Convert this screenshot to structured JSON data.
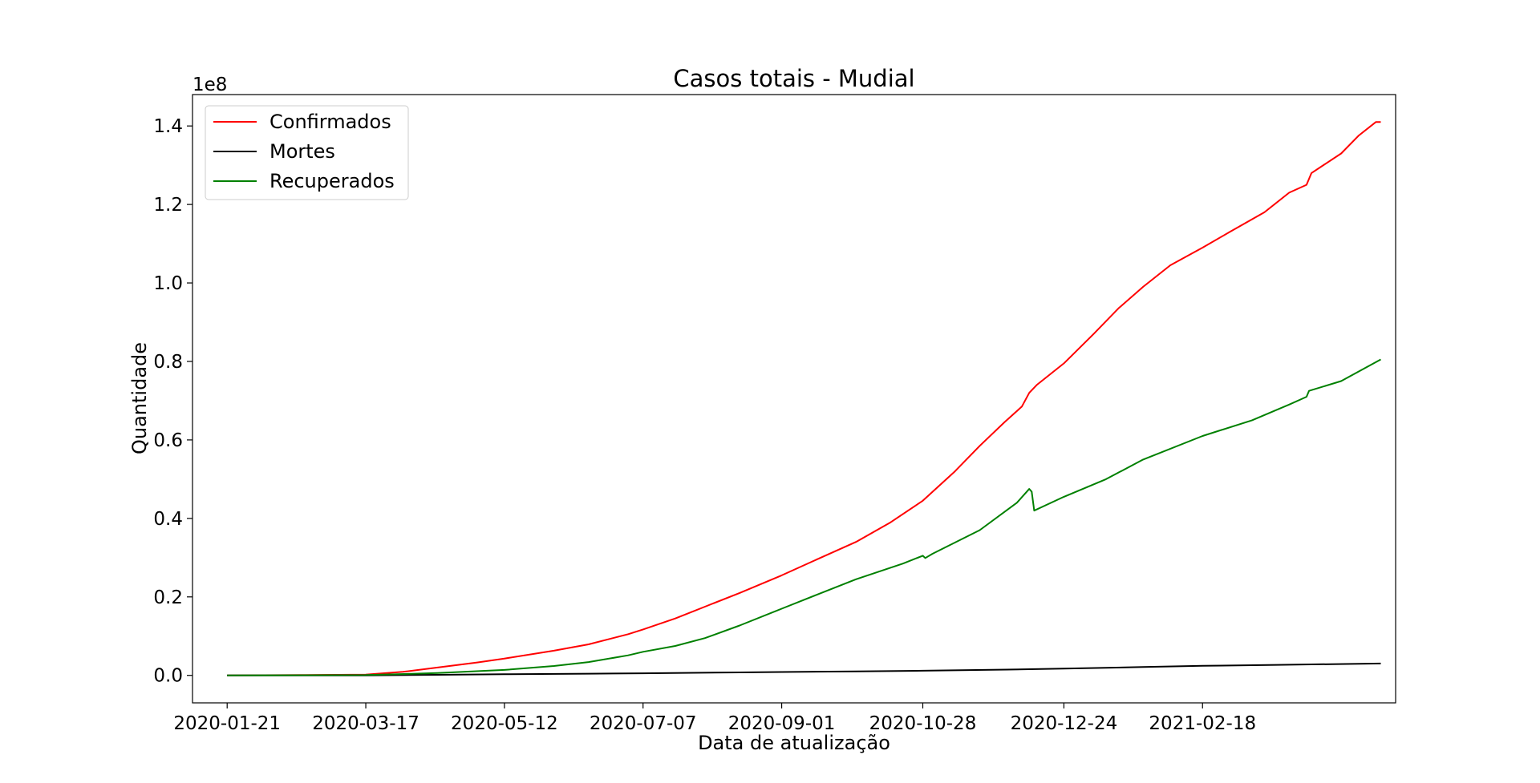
{
  "chart_data": {
    "type": "line",
    "title": "Casos totais - Mudial",
    "xlabel": "Data de atualização",
    "ylabel": "Quantidade",
    "y_offset_label": "1e8",
    "y_scale_factor": 100000000,
    "ylim": [
      -0.07,
      1.48
    ],
    "xlim": [
      "2020-01-07",
      "2021-05-07"
    ],
    "x_tick_labels": [
      "2020-01-21",
      "2020-03-17",
      "2020-05-12",
      "2020-07-07",
      "2020-09-01",
      "2020-10-28",
      "2020-12-24",
      "2021-02-18"
    ],
    "y_ticks": [
      0.0,
      0.2,
      0.4,
      0.6,
      0.8,
      1.0,
      1.2,
      1.4
    ],
    "y_tick_labels": [
      "0.0",
      "0.2",
      "0.4",
      "0.6",
      "0.8",
      "1.0",
      "1.2",
      "1.4"
    ],
    "grid": false,
    "legend_position": "top-left",
    "series": [
      {
        "name": "Confirmados",
        "color": "#ff0000",
        "points": [
          [
            "2020-01-21",
            0.0
          ],
          [
            "2020-02-20",
            0.0008
          ],
          [
            "2020-03-17",
            0.0019
          ],
          [
            "2020-04-01",
            0.009
          ],
          [
            "2020-04-15",
            0.02
          ],
          [
            "2020-05-01",
            0.033
          ],
          [
            "2020-05-12",
            0.043
          ],
          [
            "2020-06-01",
            0.063
          ],
          [
            "2020-06-15",
            0.079
          ],
          [
            "2020-07-01",
            0.105
          ],
          [
            "2020-07-07",
            0.117
          ],
          [
            "2020-07-20",
            0.145
          ],
          [
            "2020-08-01",
            0.175
          ],
          [
            "2020-08-15",
            0.21
          ],
          [
            "2020-09-01",
            0.255
          ],
          [
            "2020-09-15",
            0.295
          ],
          [
            "2020-10-01",
            0.34
          ],
          [
            "2020-10-15",
            0.39
          ],
          [
            "2020-10-28",
            0.445
          ],
          [
            "2020-11-10",
            0.52
          ],
          [
            "2020-11-20",
            0.585
          ],
          [
            "2020-11-30",
            0.645
          ],
          [
            "2020-12-07",
            0.685
          ],
          [
            "2020-12-10",
            0.72
          ],
          [
            "2020-12-13",
            0.74
          ],
          [
            "2020-12-24",
            0.795
          ],
          [
            "2021-01-05",
            0.87
          ],
          [
            "2021-01-15",
            0.935
          ],
          [
            "2021-01-25",
            0.99
          ],
          [
            "2021-02-05",
            1.045
          ],
          [
            "2021-02-18",
            1.09
          ],
          [
            "2021-03-01",
            1.13
          ],
          [
            "2021-03-15",
            1.18
          ],
          [
            "2021-03-25",
            1.23
          ],
          [
            "2021-04-01",
            1.25
          ],
          [
            "2021-04-03",
            1.28
          ],
          [
            "2021-04-15",
            1.33
          ],
          [
            "2021-04-22",
            1.375
          ],
          [
            "2021-04-29",
            1.41
          ],
          [
            "2021-05-01",
            1.41
          ]
        ]
      },
      {
        "name": "Mortes",
        "color": "#000000",
        "points": [
          [
            "2020-01-21",
            0.0
          ],
          [
            "2020-03-17",
            0.0001
          ],
          [
            "2020-04-15",
            0.0014
          ],
          [
            "2020-05-12",
            0.0029
          ],
          [
            "2020-06-15",
            0.0044
          ],
          [
            "2020-07-07",
            0.0054
          ],
          [
            "2020-08-15",
            0.0075
          ],
          [
            "2020-09-01",
            0.0087
          ],
          [
            "2020-10-01",
            0.0102
          ],
          [
            "2020-10-28",
            0.0118
          ],
          [
            "2020-12-01",
            0.0148
          ],
          [
            "2020-12-24",
            0.0175
          ],
          [
            "2021-01-25",
            0.0213
          ],
          [
            "2021-02-18",
            0.0243
          ],
          [
            "2021-03-20",
            0.0268
          ],
          [
            "2021-05-01",
            0.0302
          ]
        ]
      },
      {
        "name": "Recuperados",
        "color": "#008000",
        "points": [
          [
            "2020-01-21",
            0.0
          ],
          [
            "2020-03-17",
            0.0008
          ],
          [
            "2020-04-15",
            0.006
          ],
          [
            "2020-05-12",
            0.014
          ],
          [
            "2020-06-01",
            0.024
          ],
          [
            "2020-06-15",
            0.034
          ],
          [
            "2020-07-01",
            0.051
          ],
          [
            "2020-07-07",
            0.06
          ],
          [
            "2020-07-20",
            0.075
          ],
          [
            "2020-08-01",
            0.095
          ],
          [
            "2020-08-15",
            0.127
          ],
          [
            "2020-09-01",
            0.17
          ],
          [
            "2020-09-15",
            0.205
          ],
          [
            "2020-10-01",
            0.245
          ],
          [
            "2020-10-20",
            0.285
          ],
          [
            "2020-10-28",
            0.305
          ],
          [
            "2020-10-29",
            0.299
          ],
          [
            "2020-11-01",
            0.31
          ],
          [
            "2020-11-20",
            0.37
          ],
          [
            "2020-12-05",
            0.44
          ],
          [
            "2020-12-10",
            0.475
          ],
          [
            "2020-12-11",
            0.468
          ],
          [
            "2020-12-12",
            0.42
          ],
          [
            "2020-12-24",
            0.455
          ],
          [
            "2021-01-10",
            0.5
          ],
          [
            "2021-01-25",
            0.55
          ],
          [
            "2021-02-18",
            0.61
          ],
          [
            "2021-03-10",
            0.65
          ],
          [
            "2021-03-25",
            0.69
          ],
          [
            "2021-04-01",
            0.71
          ],
          [
            "2021-04-02",
            0.725
          ],
          [
            "2021-04-15",
            0.75
          ],
          [
            "2021-05-01",
            0.805
          ]
        ]
      }
    ]
  }
}
